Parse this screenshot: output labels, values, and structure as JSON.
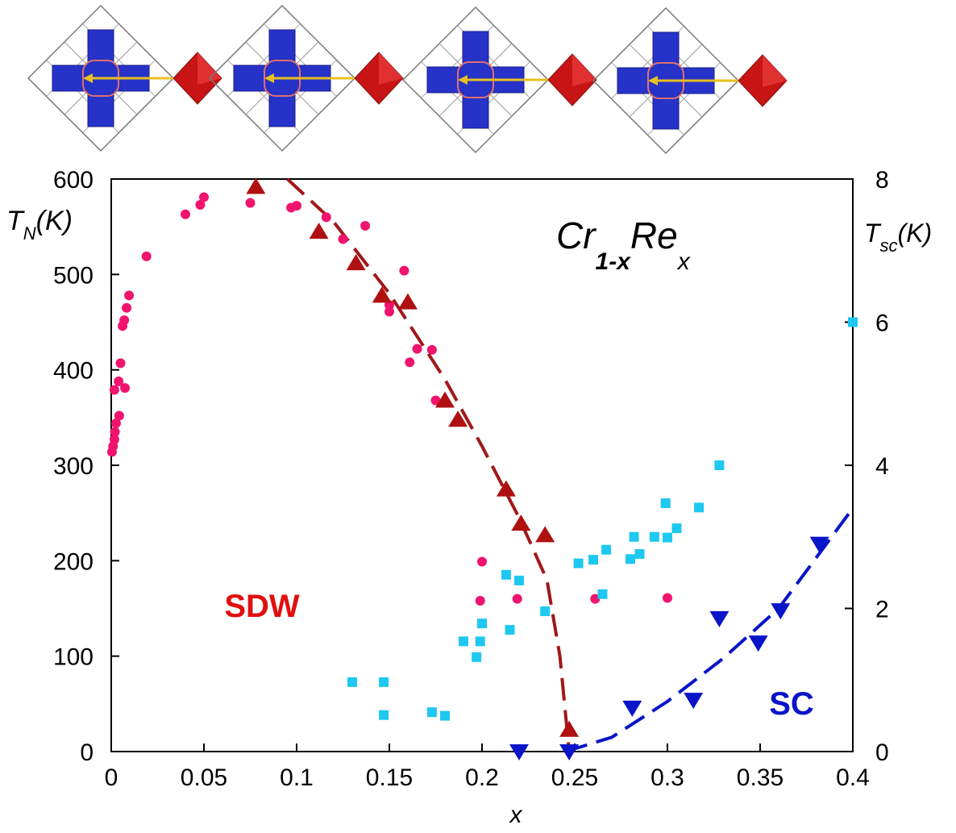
{
  "chart_data": {
    "type": "scatter",
    "title_parts": [
      "Cr",
      "1-x",
      "Re",
      "x"
    ],
    "ylabel_parts": [
      "T",
      "N",
      "(K)"
    ],
    "y2label_parts": [
      "T",
      "sc",
      "(K)"
    ],
    "xlabel": "x",
    "annotations": [
      "SDW",
      "SC"
    ],
    "xlim": [
      0,
      0.4
    ],
    "xticks": [
      0,
      0.05,
      0.1,
      0.15,
      0.2,
      0.25,
      0.3,
      0.35,
      0.4
    ],
    "ylim": [
      0,
      600
    ],
    "yticks": [
      0,
      100,
      200,
      300,
      400,
      500,
      600
    ],
    "y2lim": [
      0,
      8
    ],
    "y2ticks": [
      0,
      2,
      4,
      6,
      8
    ],
    "series": [
      {
        "type": "scatter",
        "marker": "circle",
        "color": "#f0146e",
        "axis": "y",
        "x": [
          0.0004,
          0.001,
          0.0017,
          0.002,
          0.0026,
          0.0017,
          0.004,
          0.005,
          0.0043,
          0.0074,
          0.0061,
          0.007,
          0.0083,
          0.0096,
          0.019,
          0.04,
          0.048,
          0.05,
          0.075,
          0.097,
          0.1,
          0.116,
          0.125,
          0.137,
          0.15,
          0.15,
          0.158,
          0.161,
          0.165,
          0.173,
          0.175,
          0.2,
          0.199,
          0.219,
          0.261,
          0.3
        ],
        "values": [
          314,
          320,
          327,
          335,
          344,
          379,
          388,
          407,
          352,
          381,
          446,
          452,
          465,
          478,
          519,
          563,
          573,
          581,
          575,
          570,
          572,
          560,
          537,
          551,
          468,
          461,
          504,
          408,
          422,
          421,
          368,
          199,
          158,
          160,
          160,
          161
        ]
      },
      {
        "type": "scatter",
        "marker": "triangle-up",
        "color": "#b01010",
        "axis": "y",
        "x": [
          0.078,
          0.112,
          0.132,
          0.146,
          0.16,
          0.18,
          0.187,
          0.213,
          0.221,
          0.234,
          0.247
        ],
        "values": [
          592,
          545,
          512,
          478,
          471,
          368,
          348,
          275,
          239,
          227,
          23
        ]
      },
      {
        "type": "scatter",
        "marker": "square",
        "color": "#1ec8f0",
        "axis": "y2",
        "x": [
          0.4,
          0.328,
          0.317,
          0.299,
          0.305,
          0.293,
          0.3,
          0.282,
          0.285,
          0.28,
          0.267,
          0.26,
          0.252,
          0.265,
          0.213,
          0.22,
          0.234,
          0.215,
          0.2,
          0.19,
          0.199,
          0.197,
          0.13,
          0.147,
          0.147,
          0.173,
          0.18
        ],
        "values": [
          6.0,
          4.0,
          3.41,
          3.47,
          3.12,
          3.0,
          2.99,
          3.0,
          2.76,
          2.69,
          2.82,
          2.68,
          2.63,
          2.2,
          2.47,
          2.39,
          1.96,
          1.7,
          1.79,
          1.54,
          1.54,
          1.32,
          0.97,
          0.97,
          0.51,
          0.55,
          0.5
        ]
      },
      {
        "type": "scatter",
        "marker": "triangle-down",
        "color": "#0a14c8",
        "axis": "y2",
        "x": [
          0.22,
          0.247,
          0.281,
          0.314,
          0.328,
          0.349,
          0.361,
          0.382
        ],
        "values": [
          0,
          0,
          0.61,
          0.72,
          1.86,
          1.52,
          1.97,
          2.9
        ]
      },
      {
        "type": "line",
        "style": "dashed",
        "color": "#a01818",
        "axis": "y",
        "x": [
          0.095,
          0.12,
          0.15,
          0.18,
          0.2,
          0.22,
          0.235,
          0.242,
          0.247
        ],
        "values": [
          600,
          555,
          480,
          390,
          320,
          245,
          180,
          100,
          0
        ]
      },
      {
        "type": "line",
        "style": "dashed",
        "color": "#0a14c8",
        "axis": "y2",
        "x": [
          0.245,
          0.27,
          0.3,
          0.33,
          0.36,
          0.4
        ],
        "values": [
          0,
          0.2,
          0.7,
          1.3,
          2.0,
          3.4
        ]
      }
    ]
  }
}
